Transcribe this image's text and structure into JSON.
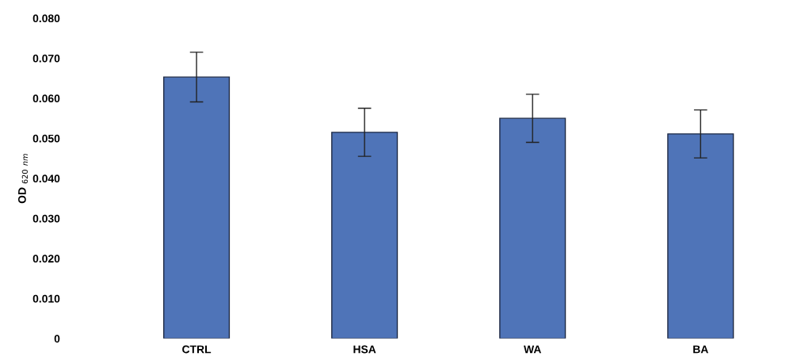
{
  "chart_data": {
    "type": "bar",
    "ylabel": "OD $_{620}$ $_{nm}$",
    "categories": [
      "CTRL",
      "HSA",
      "WA",
      "BA"
    ],
    "values": [
      0.0653,
      0.0515,
      0.055,
      0.0511
    ],
    "errors": [
      0.0062,
      0.006,
      0.006,
      0.006
    ],
    "color": "#4f74b8",
    "ylim": [
      0,
      0.08
    ],
    "yticks": [
      {
        "value": 0,
        "label": "0"
      },
      {
        "value": 0.01,
        "label": "0.010"
      },
      {
        "value": 0.02,
        "label": "0.020"
      },
      {
        "value": 0.03,
        "label": "0.030"
      },
      {
        "value": 0.04,
        "label": "0.040"
      },
      {
        "value": 0.05,
        "label": "0.050"
      },
      {
        "value": 0.06,
        "label": "0.060"
      },
      {
        "value": 0.07,
        "label": "0.070"
      },
      {
        "value": 0.08,
        "label": "0.080"
      }
    ],
    "grid": false
  }
}
